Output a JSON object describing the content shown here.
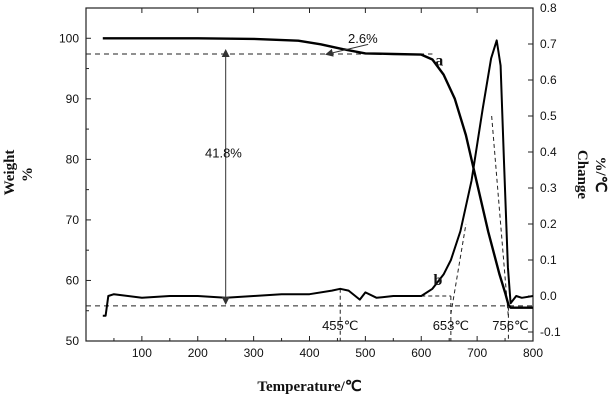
{
  "chart_data": {
    "type": "line",
    "xlabel": "Temperature/℃",
    "ylabel_left_lines": [
      "Weight",
      "%"
    ],
    "ylabel_right_lines": [
      "Change",
      "%/℃"
    ],
    "xlim": [
      0,
      800
    ],
    "ylim_left": [
      50,
      105
    ],
    "ylim_right": [
      -0.125,
      0.8
    ],
    "x_ticks": [
      100,
      200,
      300,
      400,
      500,
      600,
      700,
      800
    ],
    "y_left_ticks": [
      50,
      60,
      70,
      80,
      90,
      100
    ],
    "y_right_ticks": [
      -0.1,
      0.0,
      0.1,
      0.2,
      0.3,
      0.4,
      0.5,
      0.6,
      0.7,
      0.8
    ],
    "y_right_tick_labels": [
      "-0.1",
      "0.0",
      "0.1",
      "0.2",
      "0.3",
      "0.4",
      "0.5",
      "0.6",
      "0.7",
      "0.8"
    ],
    "grid": false,
    "series": [
      {
        "label": "a",
        "axis": "left",
        "x": [
          30,
          100,
          200,
          300,
          380,
          420,
          460,
          500,
          550,
          600,
          620,
          640,
          660,
          680,
          700,
          720,
          740,
          750,
          756,
          760,
          780,
          800
        ],
        "y": [
          100.0,
          100.0,
          100.0,
          99.9,
          99.6,
          99.0,
          98.2,
          97.5,
          97.4,
          97.3,
          96.5,
          94.0,
          90.0,
          84.0,
          76.0,
          68.0,
          61.0,
          58.0,
          56.0,
          55.5,
          55.5,
          55.5
        ]
      },
      {
        "label": "b",
        "axis": "right",
        "x": [
          30,
          35,
          40,
          50,
          100,
          150,
          200,
          250,
          300,
          350,
          400,
          440,
          455,
          470,
          490,
          500,
          520,
          550,
          600,
          620,
          640,
          653,
          670,
          690,
          710,
          725,
          735,
          742,
          748,
          755,
          760,
          770,
          780,
          800
        ],
        "y": [
          -0.055,
          -0.055,
          0.0,
          0.005,
          -0.005,
          0.0,
          0.0,
          -0.005,
          0.0,
          0.005,
          0.005,
          0.015,
          0.02,
          0.015,
          -0.01,
          0.01,
          -0.005,
          0.0,
          0.0,
          0.02,
          0.06,
          0.1,
          0.18,
          0.32,
          0.52,
          0.66,
          0.71,
          0.64,
          0.38,
          0.08,
          -0.02,
          0.0,
          -0.005,
          0.0
        ]
      }
    ],
    "annotations": {
      "mass_loss_small": "2.6%",
      "mass_loss_total": "41.8%",
      "t1": "455℃",
      "t2": "653℃",
      "t3": "756℃",
      "curve_a": "a",
      "curve_b": "b",
      "ref_weight_upper": 97.4,
      "ref_weight_lower": 55.8,
      "t1_value": 455,
      "t2_value": 653,
      "t3_value": 756,
      "a_label_pos": [
        625,
        95.5
      ],
      "b_label_pos": [
        622,
        0.03
      ],
      "small_arrow_from": [
        600,
        99.1
      ],
      "small_arrow_to": [
        440,
        97.4
      ],
      "vertical_arrow_x": 250
    }
  }
}
